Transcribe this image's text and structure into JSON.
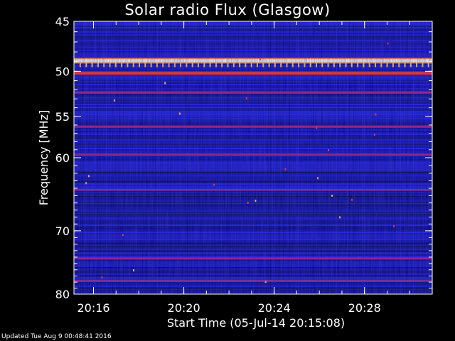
{
  "chart_data": {
    "type": "heatmap",
    "title": "Solar radio Flux (Glasgow)",
    "xlabel": "Start Time (05-Jul-14 20:15:08)",
    "ylabel": "Frequency [MHz]",
    "x_range": [
      "20:15:08",
      "20:31:00"
    ],
    "x_ticks": [
      "20:16",
      "20:20",
      "20:24",
      "20:28"
    ],
    "y_scale": "log",
    "ylim": [
      45,
      80
    ],
    "y_ticks": [
      "45",
      "50",
      "55",
      "60",
      "70",
      "80"
    ],
    "colormap": [
      "#000000",
      "#00008c",
      "#1e1ee6",
      "#5a3cc8",
      "#c8143c",
      "#ff3c14",
      "#ffd250",
      "#ffffdc"
    ],
    "strong_bands_mhz": [
      {
        "freq": 48.9,
        "level": "saturated"
      },
      {
        "freq": 50.2,
        "level": "high"
      },
      {
        "freq": 52.3,
        "level": "medium"
      },
      {
        "freq": 56.2,
        "level": "medium"
      },
      {
        "freq": 59.6,
        "level": "medium"
      },
      {
        "freq": 64.2,
        "level": "medium"
      },
      {
        "freq": 74.2,
        "level": "medium"
      },
      {
        "freq": 77.8,
        "level": "medium"
      }
    ]
  },
  "footer": {
    "updated": "Updated Tue Aug  9 00:48:41 2016"
  }
}
